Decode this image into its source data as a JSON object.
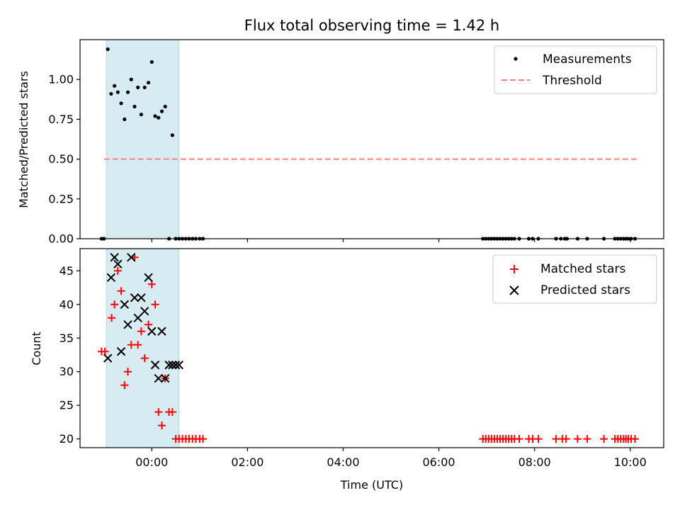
{
  "chart_data": {
    "type": "scatter",
    "title": "Flux total observing time = 1.42 h",
    "xlabel": "Time (UTC)",
    "xlim": [
      -1.5,
      10.7
    ],
    "x_ticks": [
      0,
      2,
      4,
      6,
      8,
      10
    ],
    "x_tick_labels": [
      "00:00",
      "02:00",
      "04:00",
      "06:00",
      "08:00",
      "10:00"
    ],
    "shaded_span": [
      -0.95,
      0.57
    ],
    "top_panel": {
      "ylabel": "Matched/Predicted stars",
      "ylim": [
        0,
        1.25
      ],
      "y_ticks": [
        0,
        0.25,
        0.5,
        0.75,
        1.0
      ],
      "y_tick_labels": [
        "0.00",
        "0.25",
        "0.50",
        "0.75",
        "1.00"
      ],
      "legend": [
        "Measurements",
        "Threshold"
      ],
      "threshold": {
        "name": "Threshold",
        "y": 0.5,
        "x_start": -1.0,
        "x_end": 10.15,
        "color": "#ff7f7f"
      },
      "measurements": {
        "name": "Measurements",
        "color": "#000000",
        "x": [
          -1.05,
          -1.0,
          -0.92,
          -0.85,
          -0.78,
          -0.71,
          -0.64,
          -0.57,
          -0.5,
          -0.43,
          -0.36,
          -0.29,
          -0.22,
          -0.15,
          -0.07,
          0.0,
          0.07,
          0.14,
          0.21,
          0.28,
          0.36,
          0.43,
          0.5,
          0.57,
          0.64,
          0.71,
          0.78,
          0.85,
          0.92,
          1.0,
          1.07,
          6.92,
          6.98,
          7.04,
          7.1,
          7.16,
          7.22,
          7.28,
          7.34,
          7.4,
          7.46,
          7.52,
          7.58,
          7.68,
          7.88,
          7.96,
          8.08,
          8.45,
          8.55,
          8.63,
          8.68,
          8.9,
          9.1,
          9.45,
          9.68,
          9.74,
          9.8,
          9.86,
          9.91,
          9.96,
          10.02,
          10.1
        ],
        "y": [
          0.0,
          0.0,
          1.19,
          0.91,
          0.96,
          0.92,
          0.85,
          0.75,
          0.92,
          1.0,
          0.83,
          0.95,
          0.78,
          0.95,
          0.98,
          1.11,
          0.77,
          0.76,
          0.8,
          0.83,
          0.0,
          0.65,
          0.0,
          0.0,
          0.0,
          0.0,
          0.0,
          0.0,
          0.0,
          0.0,
          0.0,
          0.0,
          0.0,
          0.0,
          0.0,
          0.0,
          0.0,
          0.0,
          0.0,
          0.0,
          0.0,
          0.0,
          0.0,
          0.0,
          0.0,
          0.0,
          0.0,
          0.0,
          0.0,
          0.0,
          0.0,
          0.0,
          0.0,
          0.0,
          0.0,
          0.0,
          0.0,
          0.0,
          0.0,
          0.0,
          0.0,
          0.0
        ]
      }
    },
    "bottom_panel": {
      "ylabel": "Count",
      "ylim": [
        18.7,
        48.3
      ],
      "y_ticks": [
        20,
        25,
        30,
        35,
        40,
        45
      ],
      "y_tick_labels": [
        "20",
        "25",
        "30",
        "35",
        "40",
        "45"
      ],
      "legend": [
        "Matched stars",
        "Predicted stars"
      ],
      "series": [
        {
          "name": "Matched stars",
          "marker": "plus",
          "color": "#ff0000",
          "x": [
            -1.05,
            -0.98,
            -0.84,
            -0.78,
            -0.71,
            -0.64,
            -0.57,
            -0.5,
            -0.43,
            -0.36,
            -0.29,
            -0.22,
            -0.15,
            -0.07,
            0.0,
            0.07,
            0.14,
            0.21,
            0.28,
            0.36,
            0.43,
            0.5,
            0.57,
            0.64,
            0.71,
            0.78,
            0.85,
            0.92,
            1.0,
            1.07,
            6.92,
            6.98,
            7.04,
            7.1,
            7.16,
            7.22,
            7.28,
            7.34,
            7.4,
            7.46,
            7.52,
            7.58,
            7.68,
            7.88,
            7.96,
            8.08,
            8.45,
            8.58,
            8.66,
            8.9,
            9.1,
            9.45,
            9.68,
            9.74,
            9.8,
            9.86,
            9.91,
            9.96,
            10.02,
            10.1
          ],
          "y": [
            33,
            33,
            38,
            40,
            45,
            42,
            28,
            30,
            34,
            47,
            34,
            36,
            32,
            37,
            43,
            40,
            24,
            22,
            29,
            24,
            24,
            20,
            20,
            20,
            20,
            20,
            20,
            20,
            20,
            20,
            20,
            20,
            20,
            20,
            20,
            20,
            20,
            20,
            20,
            20,
            20,
            20,
            20,
            20,
            20,
            20,
            20,
            20,
            20,
            20,
            20,
            20,
            20,
            20,
            20,
            20,
            20,
            20,
            20,
            20
          ]
        },
        {
          "name": "Predicted stars",
          "marker": "x",
          "color": "#000000",
          "x": [
            -0.92,
            -0.85,
            -0.78,
            -0.71,
            -0.64,
            -0.57,
            -0.5,
            -0.43,
            -0.36,
            -0.29,
            -0.22,
            -0.15,
            -0.07,
            0.0,
            0.07,
            0.14,
            0.21,
            0.28,
            0.36,
            0.43,
            0.5,
            0.57
          ],
          "y": [
            32,
            44,
            47,
            46,
            33,
            40,
            37,
            47,
            41,
            38,
            41,
            39,
            44,
            36,
            31,
            29,
            36,
            29,
            31,
            31,
            31,
            31
          ]
        }
      ]
    }
  }
}
